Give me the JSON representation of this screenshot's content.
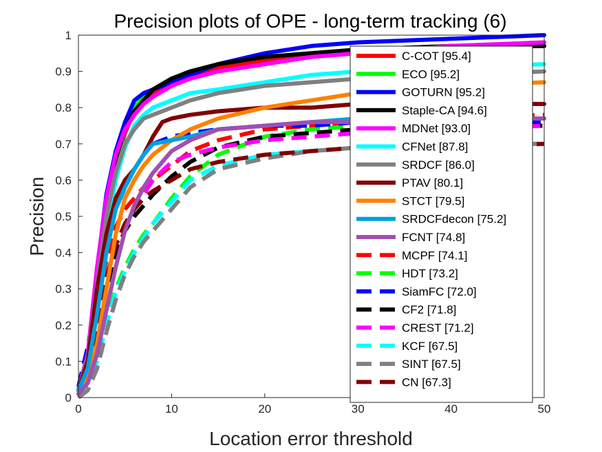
{
  "chart_data": {
    "type": "line",
    "title": "Precision plots of OPE - long-term tracking (6)",
    "xlabel": "Location error threshold",
    "ylabel": "Precision",
    "xlim": [
      0,
      50
    ],
    "ylim": [
      0,
      1
    ],
    "xticks": [
      "0",
      "10",
      "20",
      "30",
      "40",
      "50"
    ],
    "yticks": [
      "0",
      "0.1",
      "0.2",
      "0.3",
      "0.4",
      "0.5",
      "0.6",
      "0.7",
      "0.8",
      "0.9",
      "1"
    ],
    "grid": false,
    "legend_position": "top-right",
    "series": [
      {
        "name": "C-COT [95.4]",
        "color": "#ff0000",
        "dash": "solid",
        "x": [
          0,
          1,
          2,
          3,
          4,
          5,
          6,
          7,
          8,
          10,
          12,
          15,
          20,
          25,
          30,
          40,
          50
        ],
        "y": [
          0.02,
          0.1,
          0.3,
          0.5,
          0.64,
          0.73,
          0.79,
          0.82,
          0.84,
          0.86,
          0.88,
          0.91,
          0.93,
          0.95,
          0.96,
          0.97,
          0.97
        ]
      },
      {
        "name": "ECO [95.2]",
        "color": "#00ff00",
        "dash": "solid",
        "x": [
          0,
          1,
          2,
          3,
          4,
          5,
          6,
          7,
          8,
          10,
          12,
          15,
          20,
          25,
          30,
          40,
          50
        ],
        "y": [
          0.02,
          0.1,
          0.3,
          0.5,
          0.64,
          0.74,
          0.8,
          0.83,
          0.85,
          0.88,
          0.9,
          0.92,
          0.94,
          0.95,
          0.96,
          0.97,
          0.98
        ]
      },
      {
        "name": "GOTURN [95.2]",
        "color": "#0000ff",
        "dash": "solid",
        "x": [
          0,
          1,
          2,
          3,
          4,
          5,
          6,
          7,
          8,
          10,
          12,
          15,
          20,
          25,
          30,
          40,
          50
        ],
        "y": [
          0.02,
          0.12,
          0.35,
          0.56,
          0.68,
          0.76,
          0.82,
          0.84,
          0.85,
          0.87,
          0.89,
          0.92,
          0.95,
          0.97,
          0.98,
          0.99,
          1.0
        ]
      },
      {
        "name": "Staple-CA [94.6]",
        "color": "#000000",
        "dash": "solid",
        "x": [
          0,
          1,
          2,
          3,
          4,
          5,
          6,
          7,
          8,
          10,
          12,
          15,
          20,
          25,
          30,
          40,
          50
        ],
        "y": [
          0.02,
          0.11,
          0.33,
          0.53,
          0.66,
          0.74,
          0.79,
          0.82,
          0.85,
          0.88,
          0.9,
          0.92,
          0.94,
          0.95,
          0.96,
          0.97,
          0.97
        ]
      },
      {
        "name": "MDNet [93.0]",
        "color": "#ff00ff",
        "dash": "solid",
        "x": [
          0,
          1,
          2,
          3,
          4,
          5,
          6,
          7,
          8,
          10,
          12,
          15,
          20,
          25,
          30,
          40,
          50
        ],
        "y": [
          0.02,
          0.12,
          0.36,
          0.55,
          0.67,
          0.74,
          0.78,
          0.81,
          0.83,
          0.86,
          0.88,
          0.9,
          0.92,
          0.94,
          0.95,
          0.97,
          0.98
        ]
      },
      {
        "name": "CFNet [87.8]",
        "color": "#00ffff",
        "dash": "solid",
        "x": [
          0,
          1,
          2,
          3,
          4,
          5,
          6,
          7,
          8,
          10,
          12,
          15,
          20,
          25,
          30,
          40,
          50
        ],
        "y": [
          0.02,
          0.1,
          0.28,
          0.46,
          0.6,
          0.69,
          0.75,
          0.78,
          0.8,
          0.82,
          0.84,
          0.85,
          0.87,
          0.89,
          0.9,
          0.91,
          0.92
        ]
      },
      {
        "name": "SRDCF [86.0]",
        "color": "#808080",
        "dash": "solid",
        "x": [
          0,
          1,
          2,
          3,
          4,
          5,
          6,
          7,
          8,
          10,
          12,
          15,
          20,
          25,
          30,
          40,
          50
        ],
        "y": [
          0.02,
          0.11,
          0.31,
          0.5,
          0.62,
          0.7,
          0.74,
          0.77,
          0.78,
          0.8,
          0.82,
          0.84,
          0.86,
          0.87,
          0.88,
          0.89,
          0.9
        ]
      },
      {
        "name": "PTAV [80.1]",
        "color": "#800000",
        "dash": "solid",
        "x": [
          0,
          1,
          2,
          3,
          4,
          5,
          6,
          7,
          8,
          9,
          10,
          12,
          15,
          20,
          25,
          30,
          40,
          50
        ],
        "y": [
          0.02,
          0.1,
          0.3,
          0.45,
          0.55,
          0.6,
          0.63,
          0.67,
          0.72,
          0.76,
          0.77,
          0.78,
          0.79,
          0.8,
          0.8,
          0.81,
          0.81,
          0.81
        ]
      },
      {
        "name": "STCT [79.5]",
        "color": "#ff8000",
        "dash": "solid",
        "x": [
          0,
          1,
          2,
          3,
          4,
          5,
          6,
          7,
          8,
          10,
          12,
          15,
          20,
          25,
          30,
          40,
          50
        ],
        "y": [
          0.02,
          0.05,
          0.15,
          0.3,
          0.45,
          0.55,
          0.6,
          0.64,
          0.67,
          0.71,
          0.74,
          0.77,
          0.8,
          0.82,
          0.84,
          0.86,
          0.87
        ]
      },
      {
        "name": "SRDCFdecon [75.2]",
        "color": "#00a0e0",
        "dash": "solid",
        "x": [
          0,
          1,
          2,
          3,
          4,
          5,
          6,
          7,
          8,
          10,
          12,
          15,
          20,
          25,
          30,
          40,
          50
        ],
        "y": [
          0.02,
          0.08,
          0.23,
          0.4,
          0.52,
          0.58,
          0.63,
          0.67,
          0.7,
          0.71,
          0.72,
          0.74,
          0.75,
          0.76,
          0.77,
          0.77,
          0.77
        ]
      },
      {
        "name": "FCNT [74.8]",
        "color": "#a050b0",
        "dash": "solid",
        "x": [
          0,
          1,
          2,
          3,
          4,
          5,
          6,
          7,
          8,
          10,
          12,
          15,
          20,
          25,
          30,
          40,
          50
        ],
        "y": [
          0.01,
          0.04,
          0.12,
          0.24,
          0.36,
          0.46,
          0.53,
          0.58,
          0.62,
          0.68,
          0.71,
          0.74,
          0.75,
          0.76,
          0.76,
          0.77,
          0.77
        ]
      },
      {
        "name": "MCPF [74.1]",
        "color": "#ff0000",
        "dash": "dashed",
        "x": [
          0,
          1,
          2,
          3,
          4,
          5,
          6,
          7,
          8,
          10,
          12,
          15,
          20,
          25,
          30,
          40,
          50
        ],
        "y": [
          0.02,
          0.1,
          0.25,
          0.38,
          0.47,
          0.52,
          0.55,
          0.58,
          0.6,
          0.64,
          0.68,
          0.71,
          0.74,
          0.75,
          0.76,
          0.77,
          0.78
        ]
      },
      {
        "name": "HDT [73.2]",
        "color": "#00ff00",
        "dash": "dashed",
        "x": [
          0,
          1,
          2,
          3,
          4,
          5,
          6,
          7,
          8,
          10,
          12,
          15,
          20,
          25,
          30,
          40,
          50
        ],
        "y": [
          0.01,
          0.04,
          0.1,
          0.2,
          0.3,
          0.36,
          0.41,
          0.45,
          0.48,
          0.55,
          0.61,
          0.67,
          0.72,
          0.74,
          0.75,
          0.76,
          0.77
        ]
      },
      {
        "name": "SiamFC [72.0]",
        "color": "#0000ff",
        "dash": "dashed",
        "x": [
          0,
          1,
          2,
          3,
          4,
          5,
          6,
          7,
          8,
          10,
          12,
          15,
          20,
          25,
          30,
          40,
          50
        ],
        "y": [
          0.03,
          0.14,
          0.28,
          0.42,
          0.52,
          0.58,
          0.63,
          0.67,
          0.7,
          0.72,
          0.73,
          0.74,
          0.75,
          0.75,
          0.76,
          0.76,
          0.76
        ]
      },
      {
        "name": "CF2 [71.8]",
        "color": "#000000",
        "dash": "dashed",
        "x": [
          0,
          1,
          2,
          3,
          4,
          5,
          6,
          7,
          8,
          10,
          12,
          15,
          20,
          25,
          30,
          40,
          50
        ],
        "y": [
          0.01,
          0.05,
          0.15,
          0.3,
          0.4,
          0.46,
          0.5,
          0.53,
          0.56,
          0.61,
          0.65,
          0.69,
          0.72,
          0.73,
          0.74,
          0.75,
          0.75
        ]
      },
      {
        "name": "CREST [71.2]",
        "color": "#ff00ff",
        "dash": "dashed",
        "x": [
          0,
          1,
          2,
          3,
          4,
          5,
          6,
          7,
          8,
          10,
          12,
          15,
          20,
          25,
          30,
          40,
          50
        ],
        "y": [
          0.02,
          0.07,
          0.18,
          0.33,
          0.42,
          0.48,
          0.52,
          0.56,
          0.6,
          0.65,
          0.67,
          0.69,
          0.71,
          0.72,
          0.73,
          0.74,
          0.75
        ]
      },
      {
        "name": "KCF [67.5]",
        "color": "#00ffff",
        "dash": "dashed",
        "x": [
          0,
          1,
          2,
          3,
          4,
          5,
          6,
          7,
          8,
          10,
          12,
          15,
          20,
          25,
          30,
          40,
          50
        ],
        "y": [
          0.01,
          0.04,
          0.1,
          0.2,
          0.29,
          0.35,
          0.4,
          0.44,
          0.48,
          0.54,
          0.6,
          0.64,
          0.67,
          0.68,
          0.69,
          0.7,
          0.7
        ]
      },
      {
        "name": "SINT [67.5]",
        "color": "#808080",
        "dash": "dashed",
        "x": [
          0,
          1,
          2,
          3,
          4,
          5,
          6,
          7,
          8,
          10,
          12,
          15,
          20,
          25,
          30,
          40,
          50
        ],
        "y": [
          0.0,
          0.02,
          0.08,
          0.18,
          0.27,
          0.34,
          0.39,
          0.43,
          0.46,
          0.52,
          0.58,
          0.63,
          0.66,
          0.68,
          0.69,
          0.7,
          0.7
        ]
      },
      {
        "name": "CN [67.3]",
        "color": "#800000",
        "dash": "dashed",
        "x": [
          0,
          1,
          2,
          3,
          4,
          5,
          6,
          7,
          8,
          10,
          12,
          15,
          20,
          25,
          30,
          40,
          50
        ],
        "y": [
          0.02,
          0.08,
          0.2,
          0.33,
          0.42,
          0.48,
          0.52,
          0.55,
          0.57,
          0.6,
          0.63,
          0.65,
          0.67,
          0.68,
          0.69,
          0.69,
          0.7
        ]
      }
    ]
  }
}
